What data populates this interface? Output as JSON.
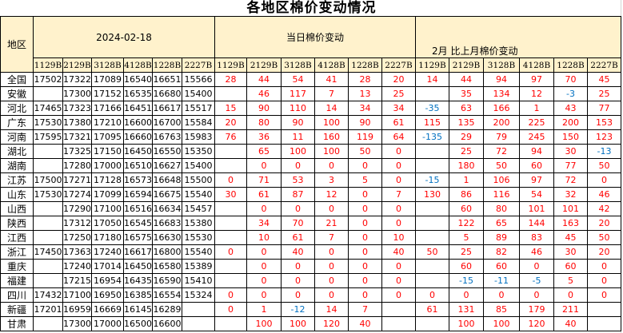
{
  "title": "各地区棉价变动情况",
  "header": {
    "region_label": "地区",
    "group1": "2024-02-18",
    "group2": "当日棉价变动",
    "group3": "2月 比上月棉价变动",
    "codes": [
      "1129B",
      "2129B",
      "3128B",
      "4128B",
      "1228B",
      "2227B"
    ]
  },
  "colors": {
    "header_bg": "#fff2cc",
    "positive": "#ff0000",
    "negative": "#0070c0"
  },
  "rows": [
    {
      "region": "全国",
      "price": [
        "17502",
        "17322",
        "17089",
        "16540",
        "16651",
        "15566"
      ],
      "daily": [
        "28",
        "44",
        "54",
        "41",
        "28",
        "20"
      ],
      "monthly": [
        "14",
        "44",
        "94",
        "97",
        "70",
        "45"
      ]
    },
    {
      "region": "安徽",
      "price": [
        "",
        "17300",
        "17152",
        "16535",
        "16680",
        "15400"
      ],
      "daily": [
        "",
        "46",
        "117",
        "7",
        "13",
        "25"
      ],
      "monthly": [
        "",
        "35",
        "134",
        "12",
        "-3",
        "25"
      ]
    },
    {
      "region": "河北",
      "price": [
        "17465",
        "17323",
        "17166",
        "16451",
        "16617",
        "15517"
      ],
      "daily": [
        "15",
        "90",
        "110",
        "14",
        "34",
        "34"
      ],
      "monthly": [
        "-35",
        "63",
        "166",
        "1",
        "43",
        "77"
      ]
    },
    {
      "region": "广东",
      "price": [
        "17530",
        "17380",
        "17210",
        "16600",
        "16700",
        "15584"
      ],
      "daily": [
        "20",
        "80",
        "90",
        "100",
        "90",
        "61"
      ],
      "monthly": [
        "115",
        "135",
        "200",
        "225",
        "200",
        "153"
      ]
    },
    {
      "region": "河南",
      "price": [
        "17595",
        "17321",
        "17095",
        "16660",
        "16763",
        "15983"
      ],
      "daily": [
        "76",
        "36",
        "11",
        "160",
        "119",
        "64"
      ],
      "monthly": [
        "-135",
        "29",
        "79",
        "245",
        "150",
        "123"
      ]
    },
    {
      "region": "湖北",
      "price": [
        "",
        "17325",
        "17150",
        "16450",
        "16550",
        "15350"
      ],
      "daily": [
        "",
        "65",
        "100",
        "100",
        "50",
        "0"
      ],
      "monthly": [
        "",
        "25",
        "72",
        "94",
        "30",
        "-13"
      ]
    },
    {
      "region": "湖南",
      "price": [
        "",
        "17280",
        "17000",
        "16510",
        "16627",
        "15400"
      ],
      "daily": [
        "",
        "0",
        "0",
        "0",
        "0",
        "0"
      ],
      "monthly": [
        "",
        "180",
        "50",
        "60",
        "77",
        "50"
      ]
    },
    {
      "region": "江苏",
      "price": [
        "17500",
        "17271",
        "17128",
        "16573",
        "16648",
        "15500"
      ],
      "daily": [
        "0",
        "71",
        "53",
        "3",
        "5",
        "0"
      ],
      "monthly": [
        "-15",
        "1",
        "106",
        "97",
        "72",
        "0"
      ]
    },
    {
      "region": "山东",
      "price": [
        "17530",
        "17274",
        "17099",
        "16594",
        "16675",
        "15540"
      ],
      "daily": [
        "30",
        "61",
        "87",
        "12",
        "0",
        "7"
      ],
      "monthly": [
        "130",
        "86",
        "116",
        "54",
        "32",
        "46"
      ]
    },
    {
      "region": "山西",
      "price": [
        "",
        "17290",
        "17100",
        "16516",
        "16634",
        "15457"
      ],
      "daily": [
        "",
        "0",
        "0",
        "0",
        "0",
        "0"
      ],
      "monthly": [
        "",
        "60",
        "80",
        "101",
        "101",
        "42"
      ]
    },
    {
      "region": "陕西",
      "price": [
        "",
        "17312",
        "17050",
        "16545",
        "16683",
        "15380"
      ],
      "daily": [
        "",
        "34",
        "70",
        "21",
        "0",
        "0"
      ],
      "monthly": [
        "",
        "122",
        "65",
        "144",
        "163",
        "20"
      ]
    },
    {
      "region": "江西",
      "price": [
        "",
        "17250",
        "17180",
        "16575",
        "16630",
        "15530"
      ],
      "daily": [
        "",
        "10",
        "61",
        "7",
        "0",
        "10"
      ],
      "monthly": [
        "",
        "5",
        "89",
        "83",
        "45",
        "50"
      ]
    },
    {
      "region": "浙江",
      "price": [
        "17450",
        "17363",
        "17240",
        "16617",
        "16800",
        "15540"
      ],
      "daily": [
        "0",
        "0",
        "40",
        "0",
        "0",
        "40"
      ],
      "monthly": [
        "50",
        "25",
        "82",
        "46",
        "30",
        "20"
      ]
    },
    {
      "region": "重庆",
      "price": [
        "",
        "17240",
        "17014",
        "16450",
        "16580",
        "15389"
      ],
      "daily": [
        "",
        "0",
        "0",
        "0",
        "0",
        "0"
      ],
      "monthly": [
        "",
        "60",
        "60",
        "0",
        "60",
        "0"
      ]
    },
    {
      "region": "福建",
      "price": [
        "",
        "17215",
        "16954",
        "16435",
        "16590",
        "15410"
      ],
      "daily": [
        "",
        "0",
        "0",
        "0",
        "0",
        "0"
      ],
      "monthly": [
        "",
        "-15",
        "-11",
        "-5",
        "5",
        "0"
      ]
    },
    {
      "region": "四川",
      "price": [
        "17432",
        "17100",
        "16950",
        "16385",
        "16554",
        "15324"
      ],
      "daily": [
        "0",
        "0",
        "0",
        "0",
        "0",
        "0"
      ],
      "monthly": [
        "0",
        "0",
        "0",
        "0",
        "0",
        "0"
      ]
    },
    {
      "region": "新疆",
      "price": [
        "17201",
        "16959",
        "16669",
        "16145",
        "16289",
        ""
      ],
      "daily": [
        "0",
        "1",
        "-12",
        "14",
        "7",
        ""
      ],
      "monthly": [
        "61",
        "131",
        "85",
        "179",
        "211",
        ""
      ]
    },
    {
      "region": "甘肃",
      "price": [
        "",
        "17300",
        "17000",
        "16500",
        "16600",
        ""
      ],
      "daily": [
        "",
        "100",
        "100",
        "120",
        "40",
        ""
      ],
      "monthly": [
        "",
        "100",
        "100",
        "120",
        "40",
        ""
      ]
    }
  ]
}
